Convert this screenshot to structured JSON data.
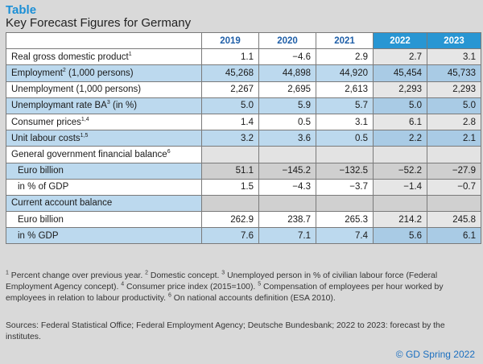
{
  "header": {
    "label": "Table",
    "title": "Key Forecast Figures for Germany"
  },
  "table": {
    "years": [
      "2019",
      "2020",
      "2021",
      "2022",
      "2023"
    ],
    "rows": [
      {
        "label": "Real gross domestic product",
        "sup": "1",
        "values": [
          "1.1",
          "−4.6",
          "2.9",
          "2.7",
          "3.1"
        ]
      },
      {
        "label": "Employment",
        "sup": "2",
        "suffix": " (1,000 persons)",
        "values": [
          "45,268",
          "44,898",
          "44,920",
          "45,454",
          "45,733"
        ]
      },
      {
        "label": "Unemployment (1,000 persons)",
        "sup": "",
        "values": [
          "2,267",
          "2,695",
          "2,613",
          "2,293",
          "2,293"
        ]
      },
      {
        "label": "Unemploymant rate BA",
        "sup": "3",
        "suffix": " (in %)",
        "values": [
          "5.0",
          "5.9",
          "5.7",
          "5.0",
          "5.0"
        ]
      },
      {
        "label": "Consumer prices",
        "sup": "1,4",
        "values": [
          "1.4",
          "0.5",
          "3.1",
          "6.1",
          "2.8"
        ]
      },
      {
        "label": "Unit labour costs",
        "sup": "1,5",
        "values": [
          "3.2",
          "3.6",
          "0.5",
          "2.2",
          "2.1"
        ]
      },
      {
        "label": "General government financial balance",
        "sup": "6",
        "values": []
      },
      {
        "label": "Euro billion",
        "sup": "",
        "values": [
          "51.1",
          "−145.2",
          "−132.5",
          "−52.2",
          "−27.9"
        ]
      },
      {
        "label": "in % of GDP",
        "sup": "",
        "values": [
          "1.5",
          "−4.3",
          "−3.7",
          "−1.4",
          "−0.7"
        ]
      },
      {
        "label": "Current account balance",
        "sup": "",
        "values": []
      },
      {
        "label": "Euro billion",
        "sup": "",
        "values": [
          "262.9",
          "238.7",
          "265.3",
          "214.2",
          "245.8"
        ]
      },
      {
        "label": "in % GDP",
        "sup": "",
        "values": [
          "7.6",
          "7.1",
          "7.4",
          "5.6",
          "6.1"
        ]
      }
    ]
  },
  "notes": {
    "n1": "1",
    "t1": " Percent change over previous year. ",
    "n2": "2",
    "t2": " Domestic concept. ",
    "n3": "3",
    "t3": " Unemployed person in % of civilian labour force (Federal Employment Agency concept). ",
    "n4": "4",
    "t4": " Consumer price index (2015=100). ",
    "n5": "5",
    "t5": " Compensation of employees per hour worked by employees in relation to labour productivity. ",
    "n6": "6",
    "t6": " On national accounts definition (ESA 2010)."
  },
  "sources": "Sources: Federal Statistical Office; Federal Employment Agency; Deutsche Bundesbank; 2022 to 2023: forecast by the institutes.",
  "copyright": "© GD Spring 2022",
  "colors": {
    "accent": "#2896d3",
    "row_blue": "#bcd9ee",
    "background": "#d9d9d9"
  }
}
